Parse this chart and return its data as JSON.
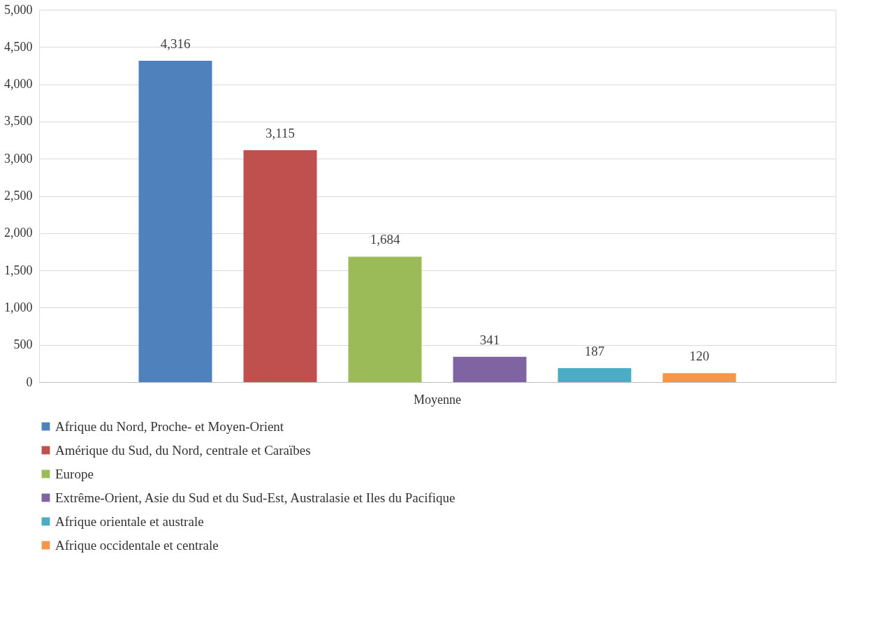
{
  "chart_data": {
    "type": "bar",
    "categories": [
      "Moyenne"
    ],
    "series": [
      {
        "name": "Afrique du Nord, Proche- et Moyen-Orient",
        "color": "#4f81bd",
        "values": [
          4316
        ],
        "value_labels": [
          "4,316"
        ]
      },
      {
        "name": "Amérique du Sud, du Nord, centrale et Caraïbes",
        "color": "#c0504d",
        "values": [
          3115
        ],
        "value_labels": [
          "3,115"
        ]
      },
      {
        "name": "Europe",
        "color": "#9bbb59",
        "values": [
          1684
        ],
        "value_labels": [
          "1,684"
        ]
      },
      {
        "name": "Extrême-Orient, Asie du Sud et du Sud-Est, Australasie et Iles du Pacifique",
        "color": "#8064a2",
        "values": [
          341
        ],
        "value_labels": [
          "341"
        ]
      },
      {
        "name": "Afrique orientale et australe",
        "color": "#4bacc6",
        "values": [
          187
        ],
        "value_labels": [
          "187"
        ]
      },
      {
        "name": "Afrique occidentale et centrale",
        "color": "#f79646",
        "values": [
          120
        ],
        "value_labels": [
          "120"
        ]
      }
    ],
    "ylim": [
      0,
      5000
    ],
    "yticks": [
      0,
      500,
      {
        "value": 1000,
        "label": "1,000"
      },
      {
        "value": 1500,
        "label": "1,500"
      },
      {
        "value": 2000,
        "label": "2,000"
      },
      {
        "value": 2500,
        "label": "2,500"
      },
      {
        "value": 3000,
        "label": "3,000"
      },
      {
        "value": 3500,
        "label": "3,500"
      },
      {
        "value": 4000,
        "label": "4,000"
      },
      {
        "value": 4500,
        "label": "4,500"
      },
      {
        "value": 5000,
        "label": "5,000"
      }
    ],
    "grid": "y",
    "legend": "bottom"
  }
}
